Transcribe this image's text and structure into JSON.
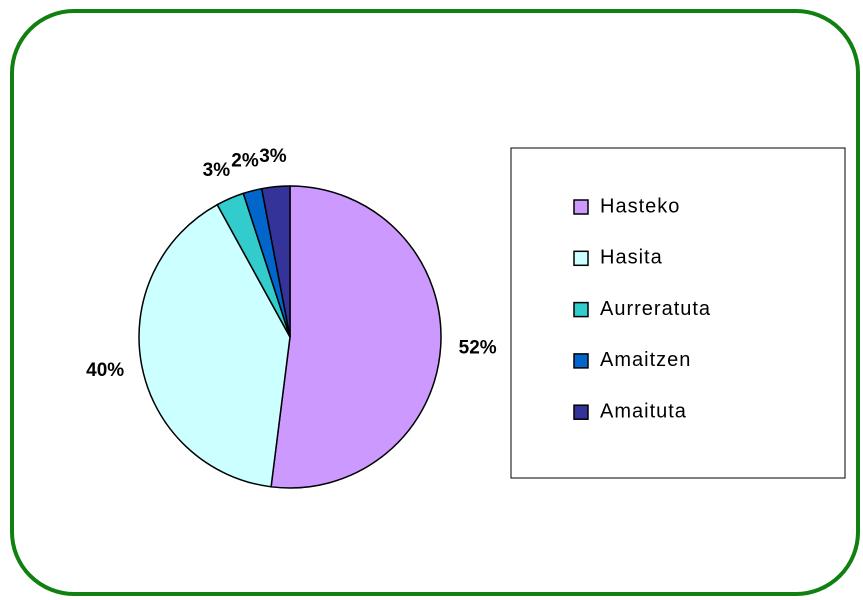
{
  "chart_data": {
    "type": "pie",
    "categories": [
      "Hasteko",
      "Hasita",
      "Aurreratuta",
      "Amaitzen",
      "Amaituta"
    ],
    "values": [
      52,
      40,
      3,
      2,
      3
    ],
    "value_labels": [
      "52%",
      "40%",
      "3%",
      "2%",
      "3%"
    ],
    "colors": [
      "#cc99ff",
      "#ccffff",
      "#33cccc",
      "#0066cc",
      "#333399"
    ],
    "legend": "right"
  }
}
